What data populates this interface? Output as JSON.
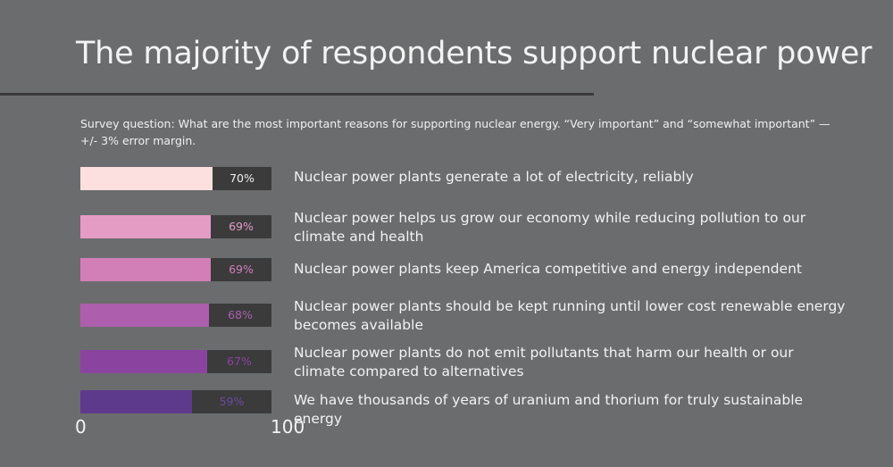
{
  "title": "The majority of respondents support nuclear power",
  "subtitle": "Survey question:  What are the most important reasons for supporting nuclear energy. “Very important” and “somewhat important” — +/- 3% error margin.",
  "chart_data": {
    "type": "bar",
    "orientation": "horizontal",
    "xlim": [
      0,
      100
    ],
    "x_ticks": [
      "0",
      "100"
    ],
    "categories": [
      "Nuclear power plants generate a lot of electricity, reliably",
      "Nuclear power helps us grow our economy while reducing pollution to our climate and health",
      "Nuclear power plants keep America competitive and energy independent",
      "Nuclear power plants should be kept running until lower cost renewable energy becomes available",
      "Nuclear power plants do not emit pollutants that harm our health or our climate compared to alternatives",
      "We have thousands of years of uranium and thorium for truly sustainable energy"
    ],
    "values": [
      70,
      69,
      69,
      68,
      67,
      59
    ],
    "value_labels": [
      "70%",
      "69%",
      "69%",
      "68%",
      "67%",
      "59%"
    ],
    "bar_colors": [
      "#fbe0df",
      "#e59cc4",
      "#d27fb8",
      "#ad5fad",
      "#8a44a0",
      "#5e3a8c"
    ],
    "label_colors": [
      "#f0f0f0",
      "#e59cc4",
      "#d27fb8",
      "#ad5fad",
      "#8a44a0",
      "#6f4aa0"
    ],
    "track_color": "#3b3b3c",
    "grid": false,
    "legend": "none"
  }
}
